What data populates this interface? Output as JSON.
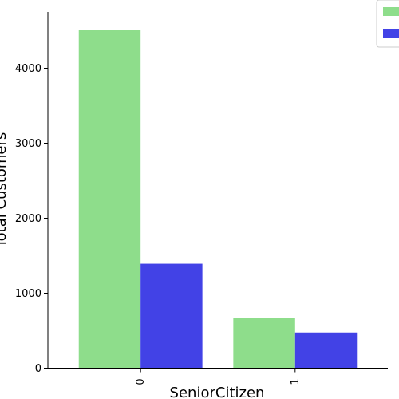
{
  "chart_data": {
    "type": "bar",
    "title": "",
    "xlabel": "SeniorCitizen",
    "ylabel": "Total Customers",
    "categories": [
      "0",
      "1"
    ],
    "series": [
      {
        "values": [
          4508,
          666
        ],
        "color": "#8edd8b"
      },
      {
        "values": [
          1393,
          476
        ],
        "color": "#4242e6"
      }
    ],
    "ylim": [
      0,
      4750
    ],
    "yticks": [
      0,
      1000,
      2000,
      3000,
      4000
    ],
    "legend": {
      "placement": "top-right"
    },
    "grid": false
  }
}
